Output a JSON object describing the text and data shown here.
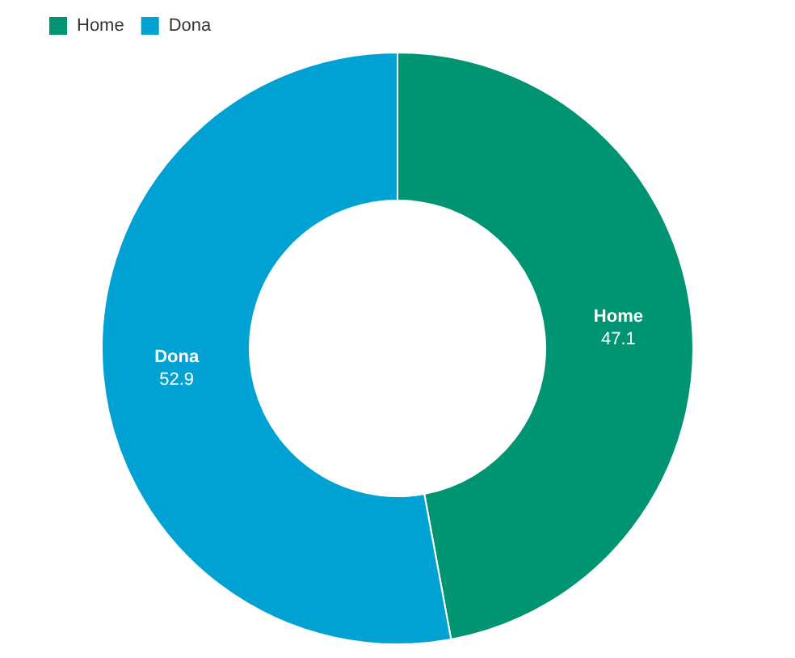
{
  "chart_data": {
    "type": "donut",
    "categories": [
      "Home",
      "Dona"
    ],
    "values": [
      47.1,
      52.9
    ],
    "colors": [
      "#009473",
      "#00a2d3"
    ],
    "legend": "top left",
    "data_labels": true
  }
}
